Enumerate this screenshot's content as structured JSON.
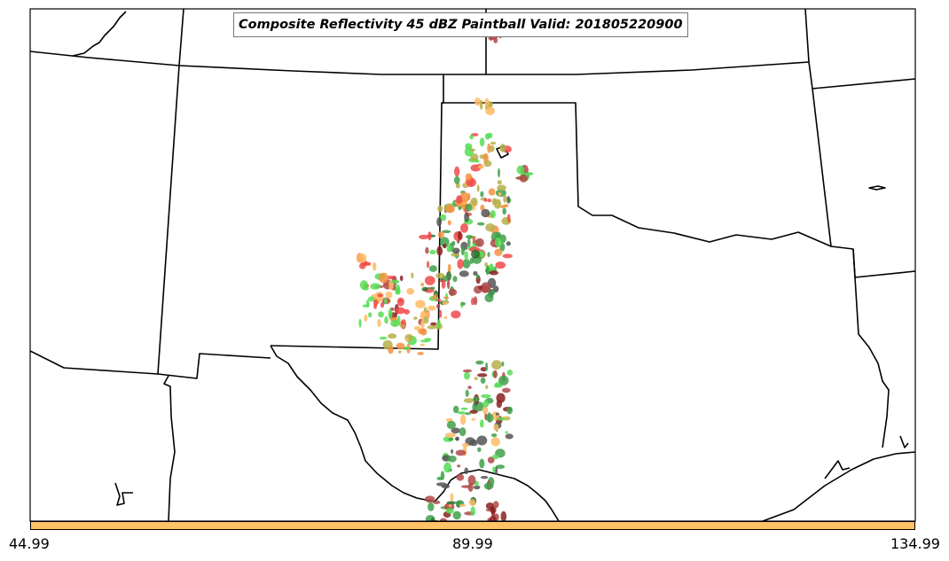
{
  "title": "Composite Reflectivity 45 dBZ Paintball Valid: 201805220900",
  "colorbar": {
    "color": "#ffc266",
    "ticks": [
      "44.99",
      "89.99",
      "134.99"
    ]
  },
  "colors": {
    "red": "#f04a4a",
    "orange": "#f59040",
    "light_orange": "#ffbb66",
    "olive": "#b5b04a",
    "light_green": "#55dd55",
    "green": "#3fa04a",
    "dark_green": "#2e6e2e",
    "dark_red": "#8a2020",
    "brown_red": "#b04848",
    "gray": "#555555"
  }
}
